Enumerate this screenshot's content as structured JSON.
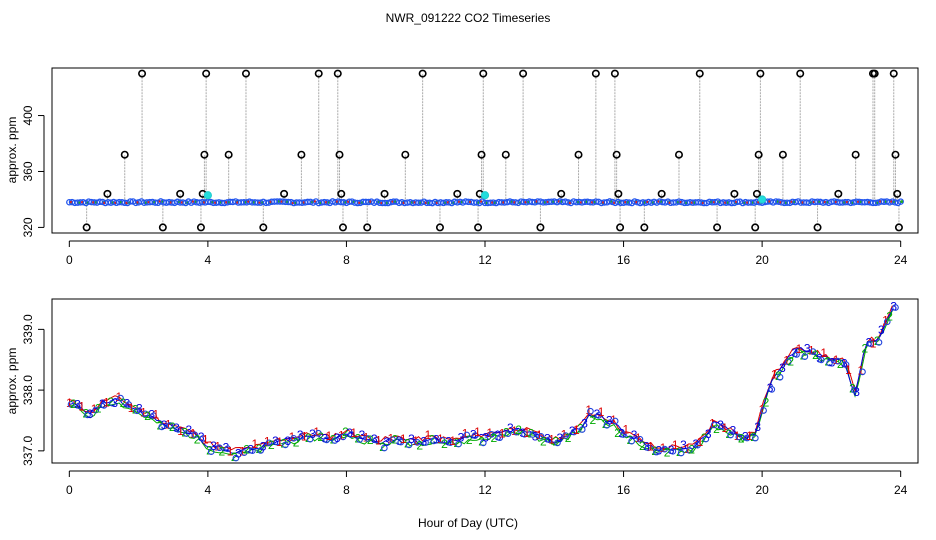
{
  "chart_data": [
    {
      "type": "scatter",
      "title": "NWR_091222  CO2 Timeseries",
      "xlabel": "",
      "ylabel": "approx. ppm",
      "xlim": [
        -0.5,
        24.5
      ],
      "ylim": [
        316,
        434
      ],
      "x_ticks": [
        "0",
        "4",
        "8",
        "12",
        "16",
        "20",
        "24"
      ],
      "y_ticks": [
        "320",
        "360",
        "400"
      ],
      "baseline_ppm": 338,
      "spikes": [
        {
          "x": 0.5,
          "y": 320
        },
        {
          "x": 1.1,
          "y": 344
        },
        {
          "x": 1.6,
          "y": 372
        },
        {
          "x": 2.1,
          "y": 430
        },
        {
          "x": 2.7,
          "y": 320
        },
        {
          "x": 3.2,
          "y": 344
        },
        {
          "x": 3.8,
          "y": 320
        },
        {
          "x": 3.85,
          "y": 344
        },
        {
          "x": 3.9,
          "y": 372
        },
        {
          "x": 3.95,
          "y": 430
        },
        {
          "x": 4.6,
          "y": 372
        },
        {
          "x": 5.1,
          "y": 430
        },
        {
          "x": 5.6,
          "y": 320
        },
        {
          "x": 6.2,
          "y": 344
        },
        {
          "x": 6.7,
          "y": 372
        },
        {
          "x": 7.2,
          "y": 430
        },
        {
          "x": 7.75,
          "y": 430
        },
        {
          "x": 7.8,
          "y": 372
        },
        {
          "x": 7.85,
          "y": 344
        },
        {
          "x": 7.9,
          "y": 320
        },
        {
          "x": 8.6,
          "y": 320
        },
        {
          "x": 9.1,
          "y": 344
        },
        {
          "x": 9.7,
          "y": 372
        },
        {
          "x": 10.2,
          "y": 430
        },
        {
          "x": 10.7,
          "y": 320
        },
        {
          "x": 11.2,
          "y": 344
        },
        {
          "x": 11.8,
          "y": 320
        },
        {
          "x": 11.85,
          "y": 344
        },
        {
          "x": 11.9,
          "y": 372
        },
        {
          "x": 11.95,
          "y": 430
        },
        {
          "x": 12.6,
          "y": 372
        },
        {
          "x": 13.1,
          "y": 430
        },
        {
          "x": 13.6,
          "y": 320
        },
        {
          "x": 14.2,
          "y": 344
        },
        {
          "x": 14.7,
          "y": 372
        },
        {
          "x": 15.2,
          "y": 430
        },
        {
          "x": 15.75,
          "y": 430
        },
        {
          "x": 15.8,
          "y": 372
        },
        {
          "x": 15.85,
          "y": 344
        },
        {
          "x": 15.9,
          "y": 320
        },
        {
          "x": 16.6,
          "y": 320
        },
        {
          "x": 17.1,
          "y": 344
        },
        {
          "x": 17.6,
          "y": 372
        },
        {
          "x": 18.2,
          "y": 430
        },
        {
          "x": 18.7,
          "y": 320
        },
        {
          "x": 19.2,
          "y": 344
        },
        {
          "x": 19.8,
          "y": 320
        },
        {
          "x": 19.85,
          "y": 344
        },
        {
          "x": 19.9,
          "y": 372
        },
        {
          "x": 19.95,
          "y": 430
        },
        {
          "x": 20.6,
          "y": 372
        },
        {
          "x": 21.1,
          "y": 430
        },
        {
          "x": 21.6,
          "y": 320
        },
        {
          "x": 22.2,
          "y": 344
        },
        {
          "x": 22.7,
          "y": 372
        },
        {
          "x": 23.2,
          "y": 430
        },
        {
          "x": 23.25,
          "y": 430
        },
        {
          "x": 23.8,
          "y": 430
        },
        {
          "x": 23.85,
          "y": 372
        },
        {
          "x": 23.9,
          "y": 344
        },
        {
          "x": 23.95,
          "y": 320
        }
      ],
      "cyan_markers": [
        {
          "x": 4.0,
          "y": 343
        },
        {
          "x": 12.0,
          "y": 343
        },
        {
          "x": 20.0,
          "y": 340
        }
      ]
    },
    {
      "type": "line",
      "title": "",
      "xlabel": "Hour of Day (UTC)",
      "ylabel": "approx. ppm",
      "xlim": [
        -0.5,
        24.5
      ],
      "ylim": [
        336.8,
        339.5
      ],
      "x_ticks": [
        "0",
        "4",
        "8",
        "12",
        "16",
        "20",
        "24"
      ],
      "y_ticks": [
        "337.0",
        "338.0",
        "339.0"
      ],
      "series_names": [
        "1",
        "2",
        "3"
      ],
      "series_colors": [
        "#dd0000",
        "#00aa00",
        "#0000dd"
      ],
      "trend": {
        "x": [
          0.0,
          0.3,
          0.6,
          1.0,
          1.3,
          1.7,
          2.2,
          2.7,
          3.2,
          3.7,
          4.0,
          4.5,
          5.0,
          5.5,
          6.0,
          6.5,
          7.0,
          7.5,
          8.0,
          8.5,
          9.0,
          9.5,
          10.0,
          10.5,
          11.0,
          11.5,
          12.0,
          12.5,
          13.0,
          13.5,
          14.0,
          14.5,
          14.8,
          15.0,
          15.4,
          15.7,
          16.0,
          16.5,
          17.0,
          17.5,
          18.0,
          18.3,
          18.6,
          19.0,
          19.5,
          19.8,
          20.0,
          20.3,
          20.6,
          21.0,
          21.5,
          22.0,
          22.4,
          22.7,
          23.0,
          23.3,
          23.6,
          23.8
        ],
        "y": [
          337.8,
          337.7,
          337.6,
          337.8,
          337.85,
          337.75,
          337.6,
          337.45,
          337.35,
          337.25,
          337.1,
          337.0,
          337.0,
          337.05,
          337.15,
          337.2,
          337.25,
          337.2,
          337.3,
          337.2,
          337.15,
          337.2,
          337.15,
          337.2,
          337.15,
          337.2,
          337.25,
          337.3,
          337.35,
          337.25,
          337.15,
          337.3,
          337.4,
          337.6,
          337.55,
          337.45,
          337.3,
          337.15,
          337.0,
          337.05,
          337.05,
          337.2,
          337.45,
          337.35,
          337.2,
          337.3,
          337.7,
          338.2,
          338.4,
          338.7,
          338.6,
          338.5,
          338.45,
          337.9,
          338.8,
          338.8,
          339.1,
          339.4
        ]
      }
    }
  ]
}
